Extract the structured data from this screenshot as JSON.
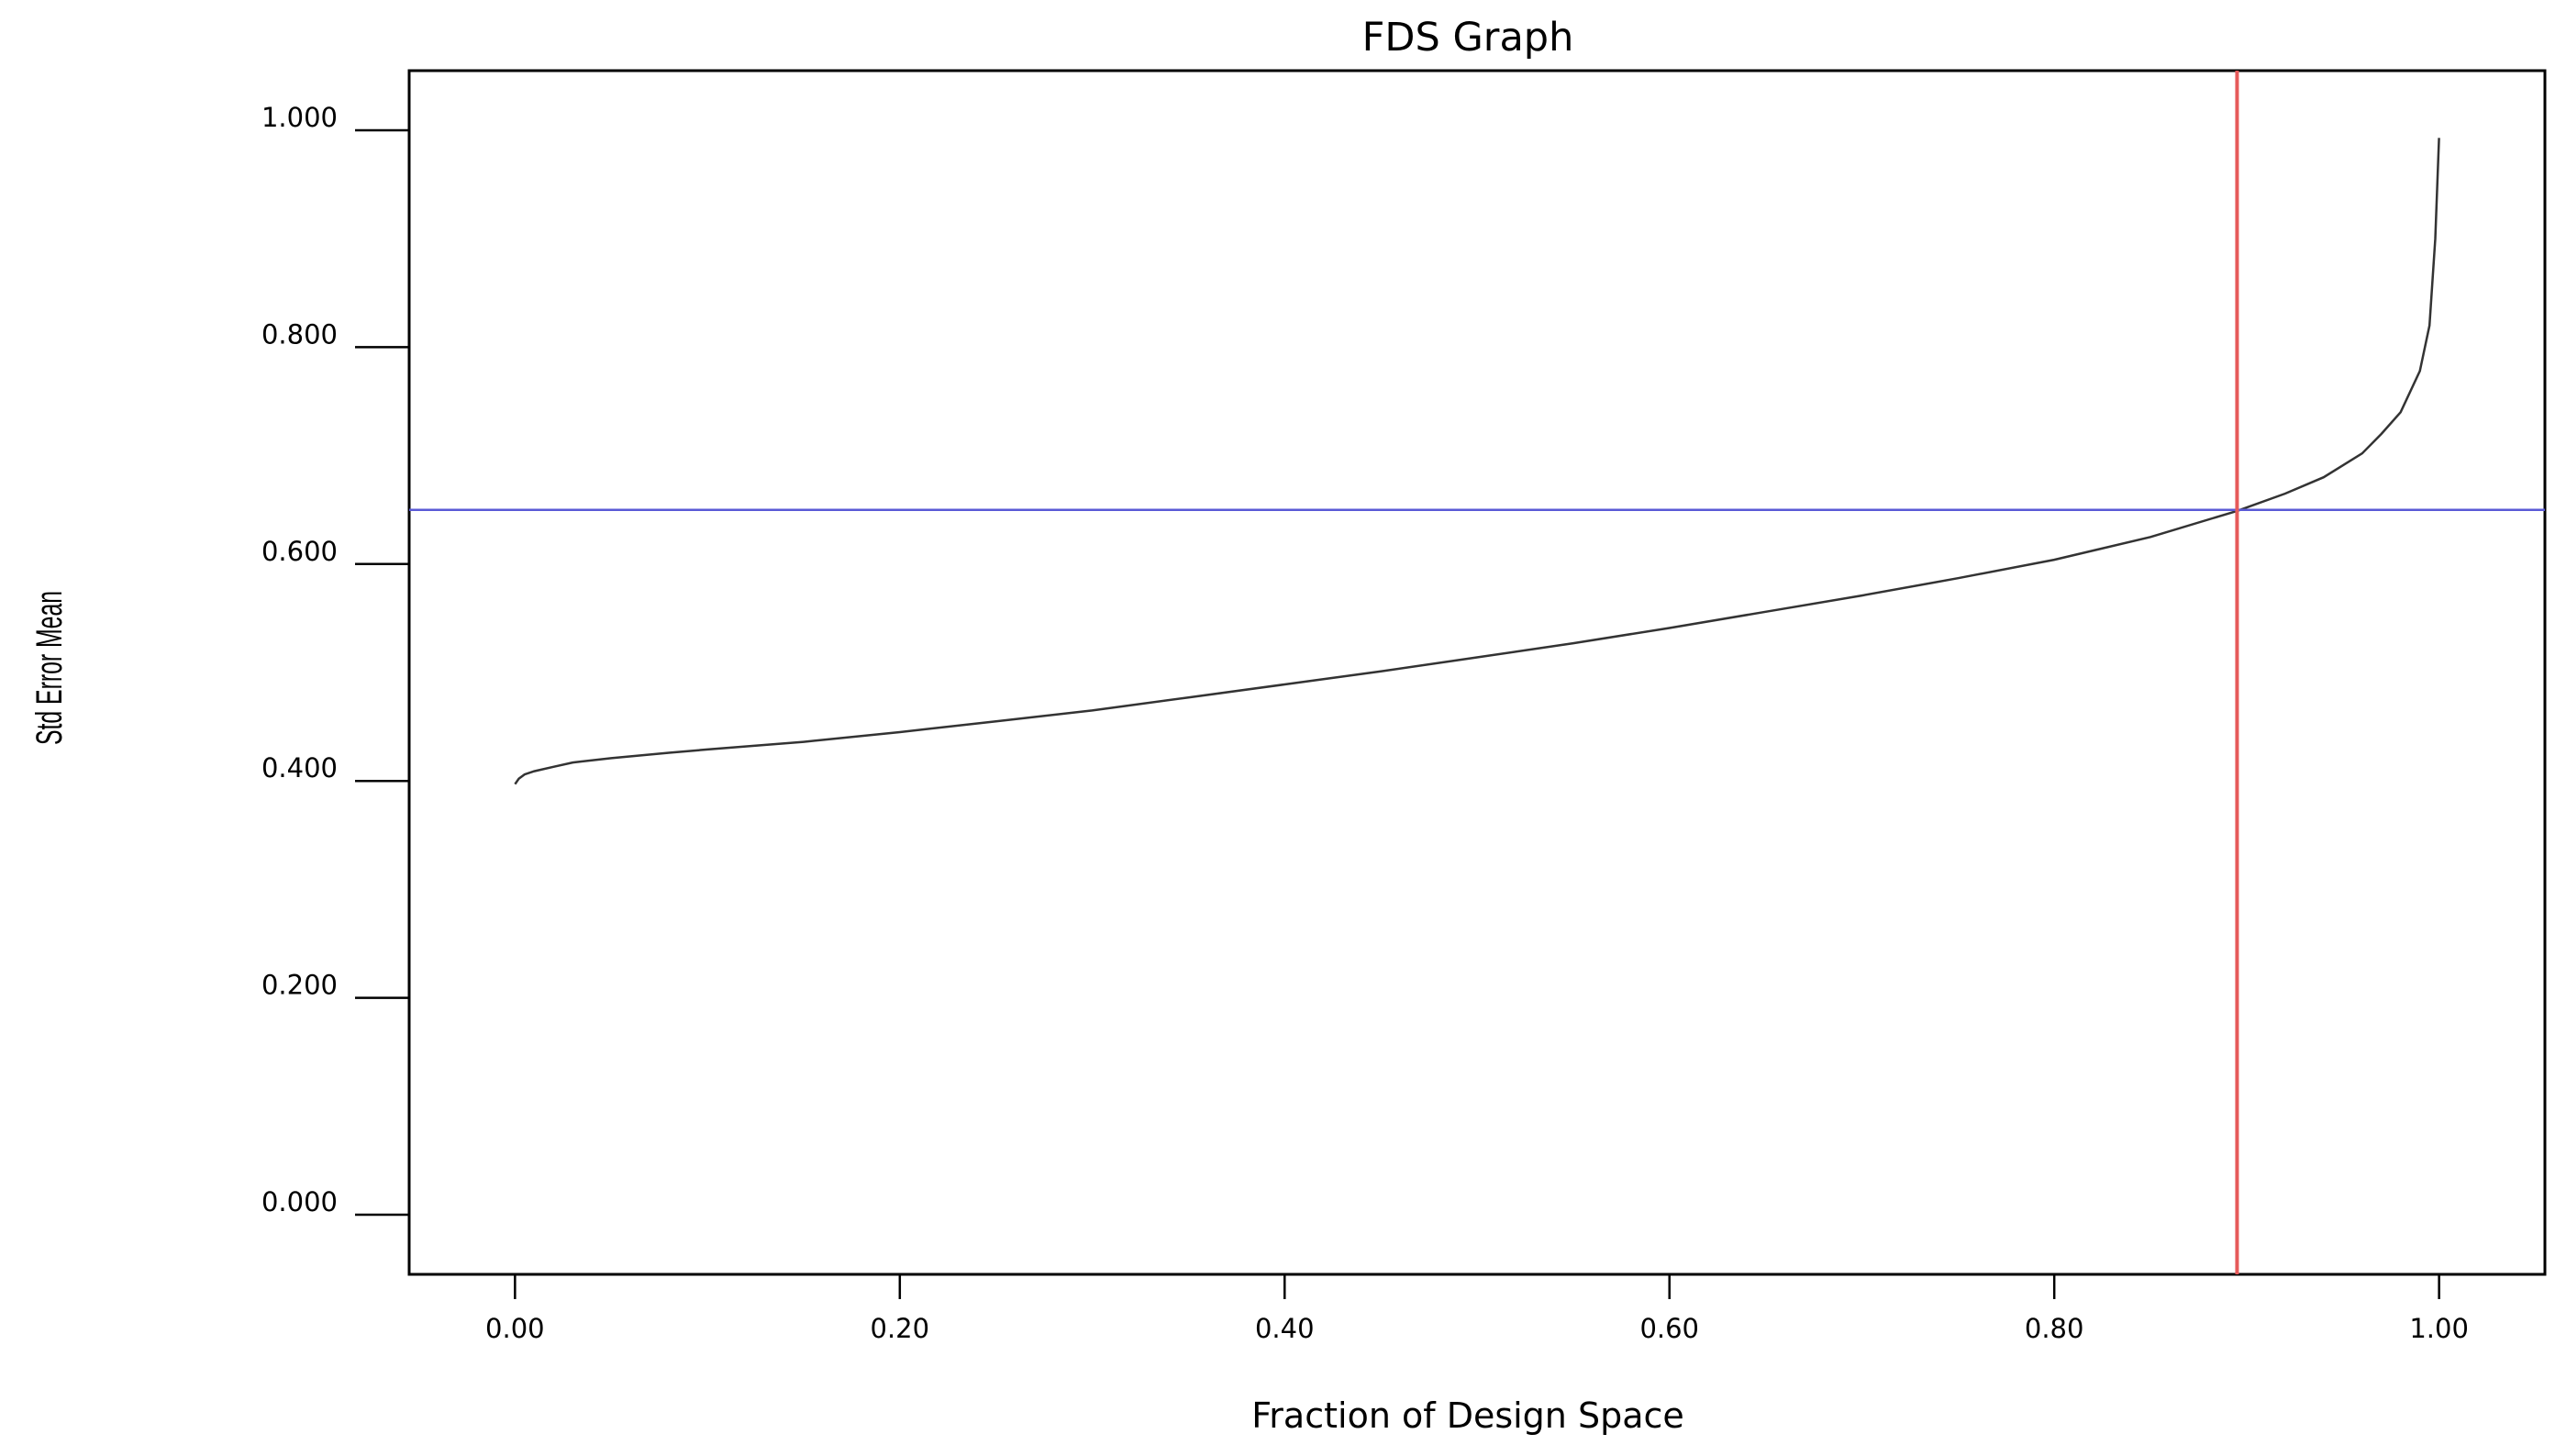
{
  "chart_data": {
    "type": "line",
    "title": "FDS Graph",
    "xlabel": "Fraction of Design Space",
    "ylabel": "Std Error Mean",
    "xlim": [
      -0.055,
      1.055
    ],
    "ylim": [
      -0.055,
      1.055
    ],
    "xticks": [
      0.0,
      0.2,
      0.4,
      0.6,
      0.8,
      1.0
    ],
    "xtick_labels": [
      "0.00",
      "0.20",
      "0.40",
      "0.60",
      "0.80",
      "1.00"
    ],
    "yticks": [
      0.0,
      0.2,
      0.4,
      0.6,
      0.8,
      1.0
    ],
    "ytick_labels": [
      "0.000",
      "0.200",
      "0.400",
      "0.600",
      "0.800",
      "1.000"
    ],
    "grid": false,
    "series": [
      {
        "color": "#333333",
        "x": [
          0.0,
          0.002,
          0.005,
          0.01,
          0.02,
          0.03,
          0.05,
          0.08,
          0.1,
          0.15,
          0.2,
          0.25,
          0.3,
          0.35,
          0.4,
          0.45,
          0.5,
          0.55,
          0.6,
          0.65,
          0.7,
          0.75,
          0.8,
          0.85,
          0.895,
          0.92,
          0.94,
          0.96,
          0.97,
          0.98,
          0.99,
          0.995,
          0.998,
          1.0
        ],
        "y": [
          0.397,
          0.402,
          0.406,
          0.409,
          0.413,
          0.417,
          0.421,
          0.426,
          0.429,
          0.436,
          0.445,
          0.455,
          0.465,
          0.477,
          0.489,
          0.501,
          0.514,
          0.527,
          0.541,
          0.556,
          0.571,
          0.587,
          0.604,
          0.625,
          0.649,
          0.665,
          0.68,
          0.702,
          0.72,
          0.74,
          0.778,
          0.82,
          0.9,
          0.993
        ]
      }
    ],
    "reference_lines": [
      {
        "orientation": "horizontal",
        "value": 0.65,
        "color": "#5a5ad6"
      },
      {
        "orientation": "vertical",
        "value": 0.895,
        "color": "#e65a5a"
      }
    ]
  }
}
